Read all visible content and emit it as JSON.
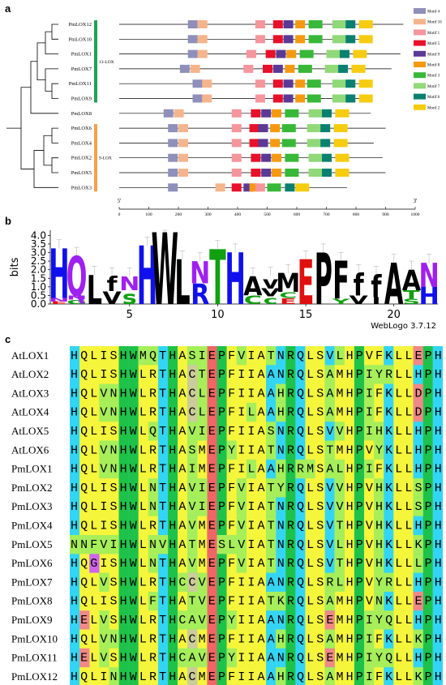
{
  "panels": {
    "a": {
      "label": "a"
    },
    "b": {
      "label": "b"
    },
    "c": {
      "label": "c"
    }
  },
  "chart_data": [
    {
      "type": "motif_structure",
      "genes": [
        "PmLOX12",
        "PmLOX10",
        "PmLOX1",
        "PmLOX7",
        "PmLOX11",
        "PmLOX9",
        "PmLOX8",
        "PmLOX6",
        "PmLOX4",
        "PmLOX2",
        "PmLOX5",
        "PmLOX3"
      ],
      "groups": [
        {
          "name": "13-LOX",
          "color": "#22a05a",
          "members": [
            "PmLOX12",
            "PmLOX10",
            "PmLOX1",
            "PmLOX7",
            "PmLOX11",
            "PmLOX9"
          ]
        },
        {
          "name": "9-LOX",
          "color": "#f5a04a",
          "members": [
            "PmLOX6",
            "PmLOX4",
            "PmLOX2",
            "PmLOX5",
            "PmLOX3"
          ]
        }
      ],
      "motif_legend": [
        {
          "name": "Motif 4",
          "color": "#8f8fbc"
        },
        {
          "name": "Motif 10",
          "color": "#f5b58c"
        },
        {
          "name": "Motif 1",
          "color": "#f5959c"
        },
        {
          "name": "Motif 5",
          "color": "#e8102a"
        },
        {
          "name": "Motif 9",
          "color": "#5a3a96"
        },
        {
          "name": "Motif 8",
          "color": "#f59a10"
        },
        {
          "name": "Motif 3",
          "color": "#38b838"
        },
        {
          "name": "Motif 7",
          "color": "#90d878"
        },
        {
          "name": "Motif 6",
          "color": "#0a8070"
        },
        {
          "name": "Motif 2",
          "color": "#f5cc10"
        }
      ],
      "lengths": [
        960,
        830,
        950,
        920,
        830,
        840,
        850,
        900,
        860,
        890,
        900,
        770
      ],
      "motif_positions": [
        [
          [
            232,
            4
          ],
          [
            265,
            10
          ],
          [
            460,
            1
          ],
          [
            520,
            5
          ],
          [
            555,
            9
          ],
          [
            595,
            8
          ],
          [
            640,
            3
          ],
          [
            720,
            7
          ],
          [
            765,
            6
          ],
          [
            810,
            2
          ]
        ],
        [
          [
            232,
            4
          ],
          [
            265,
            10
          ],
          [
            460,
            1
          ],
          [
            520,
            5
          ],
          [
            555,
            9
          ],
          [
            595,
            8
          ],
          [
            640,
            3
          ],
          [
            720,
            7
          ],
          [
            765,
            6
          ],
          [
            810,
            2
          ]
        ],
        [
          [
            232,
            4
          ],
          [
            265,
            10
          ],
          [
            430,
            1
          ],
          [
            495,
            5
          ],
          [
            530,
            9
          ],
          [
            565,
            8
          ],
          [
            610,
            3
          ],
          [
            700,
            7
          ],
          [
            745,
            6
          ],
          [
            790,
            2
          ]
        ],
        [
          [
            205,
            4
          ],
          [
            240,
            10
          ],
          [
            420,
            1
          ],
          [
            485,
            5
          ],
          [
            520,
            9
          ],
          [
            560,
            8
          ],
          [
            605,
            3
          ],
          [
            695,
            7
          ],
          [
            740,
            6
          ],
          [
            785,
            2
          ]
        ],
        [
          [
            248,
            4
          ],
          [
            280,
            10
          ],
          [
            460,
            1
          ],
          [
            520,
            5
          ],
          [
            555,
            9
          ],
          [
            595,
            8
          ],
          [
            635,
            3
          ],
          [
            720,
            7
          ],
          [
            765,
            6
          ],
          [
            810,
            2
          ]
        ],
        [
          [
            248,
            4
          ],
          [
            280,
            10
          ],
          [
            460,
            1
          ],
          [
            520,
            5
          ],
          [
            555,
            9
          ],
          [
            595,
            8
          ],
          [
            635,
            3
          ],
          [
            720,
            7
          ],
          [
            765,
            6
          ],
          [
            810,
            2
          ]
        ],
        [
          [
            150,
            4
          ],
          [
            185,
            10
          ],
          [
            380,
            1
          ],
          [
            445,
            5
          ],
          [
            480,
            9
          ],
          [
            515,
            8
          ],
          [
            560,
            3
          ],
          [
            640,
            7
          ],
          [
            685,
            6
          ],
          [
            730,
            2
          ]
        ],
        [
          [
            165,
            4
          ],
          [
            200,
            10
          ],
          [
            380,
            1
          ],
          [
            440,
            5
          ],
          [
            470,
            9
          ],
          [
            510,
            8
          ],
          [
            550,
            3
          ],
          [
            635,
            7
          ],
          [
            680,
            6
          ],
          [
            725,
            2
          ]
        ],
        [
          [
            165,
            4
          ],
          [
            200,
            10
          ],
          [
            380,
            1
          ],
          [
            440,
            5
          ],
          [
            470,
            9
          ],
          [
            510,
            8
          ],
          [
            550,
            3
          ],
          [
            635,
            7
          ],
          [
            680,
            6
          ],
          [
            725,
            2
          ]
        ],
        [
          [
            165,
            4
          ],
          [
            200,
            10
          ],
          [
            380,
            1
          ],
          [
            445,
            5
          ],
          [
            480,
            9
          ],
          [
            515,
            8
          ],
          [
            560,
            3
          ],
          [
            640,
            7
          ],
          [
            685,
            6
          ],
          [
            730,
            2
          ]
        ],
        [
          [
            165,
            4
          ],
          [
            200,
            10
          ],
          [
            380,
            1
          ],
          [
            445,
            5
          ],
          [
            480,
            9
          ],
          [
            515,
            8
          ],
          [
            560,
            3
          ],
          [
            640,
            7
          ],
          [
            685,
            6
          ],
          [
            730,
            2
          ]
        ],
        [
          [
            165,
            4
          ],
          [
            325,
            10
          ],
          [
            380,
            5
          ],
          [
            420,
            9
          ],
          [
            440,
            8
          ],
          [
            460,
            1
          ],
          [
            500,
            3
          ],
          [
            560,
            6
          ],
          [
            595,
            2
          ]
        ]
      ],
      "x_axis": {
        "ticks": [
          0,
          100,
          200,
          300,
          400,
          500,
          600,
          700,
          800,
          900,
          1000
        ],
        "min": 0,
        "max": 1000
      },
      "end_labels": [
        "5'",
        "3'"
      ]
    },
    {
      "type": "sequence_logo",
      "ylabel": "bits",
      "y_ticks": [
        "0.0",
        "0.5",
        "1.0",
        "1.5",
        "2.0",
        "2.5",
        "3.0",
        "3.5",
        "4.0"
      ],
      "ylim": [
        0,
        4.3
      ],
      "x_ticks": [
        5,
        10,
        15,
        20
      ],
      "watermark": "WebLogo 3.7.12",
      "positions": [
        [
          {
            "l": "H",
            "h": 2.9
          },
          {
            "l": "N",
            "h": 0.2
          },
          {
            "l": "E",
            "h": 0.15
          }
        ],
        [
          {
            "l": "Q",
            "h": 2.3
          },
          {
            "l": "G",
            "h": 0.25
          },
          {
            "l": "N",
            "h": 0.25
          }
        ],
        [
          {
            "l": "L",
            "h": 1.7
          }
        ],
        [
          {
            "l": "f",
            "h": 0.85
          },
          {
            "l": "V",
            "h": 0.75
          }
        ],
        [
          {
            "l": "s",
            "h": 0.8
          },
          {
            "l": "N",
            "h": 0.8
          }
        ],
        [
          {
            "l": "H",
            "h": 3.4
          }
        ],
        [
          {
            "l": "W",
            "h": 4.2
          }
        ],
        [
          {
            "l": "L",
            "h": 2.6
          }
        ],
        [
          {
            "l": "R",
            "h": 1.2
          },
          {
            "l": "N",
            "h": 1.3
          }
        ],
        [
          {
            "l": "T",
            "h": 3.2
          }
        ],
        [
          {
            "l": "H",
            "h": 3.0
          }
        ],
        [
          {
            "l": "A",
            "h": 1.1
          },
          {
            "l": "C",
            "h": 0.5
          }
        ],
        [
          {
            "l": "v",
            "h": 0.75
          },
          {
            "l": "c",
            "h": 0.45
          },
          {
            "l": "V",
            "h": 0.45
          }
        ],
        [
          {
            "l": "M",
            "h": 1.1
          },
          {
            "l": "E",
            "h": 0.35
          },
          {
            "l": "C",
            "h": 0.35
          }
        ],
        [
          {
            "l": "E",
            "h": 2.6
          }
        ],
        [
          {
            "l": "P",
            "h": 3.0
          }
        ],
        [
          {
            "l": "F",
            "h": 2.2
          },
          {
            "l": "Y",
            "h": 0.3
          }
        ],
        [
          {
            "l": "f",
            "h": 1.3
          },
          {
            "l": "V",
            "h": 0.5
          }
        ],
        [
          {
            "l": "f",
            "h": 1.3
          },
          {
            "l": "I",
            "h": 0.4
          }
        ],
        [
          {
            "l": "A",
            "h": 2.4
          }
        ],
        [
          {
            "l": "A",
            "h": 1.2
          },
          {
            "l": "T",
            "h": 0.5
          },
          {
            "l": "S",
            "h": 0.3
          }
        ],
        [
          {
            "l": "N",
            "h": 1.4
          },
          {
            "l": "H",
            "h": 1.0
          }
        ]
      ]
    },
    {
      "type": "table",
      "rows": [
        {
          "name": "AtLOX1",
          "seq": "HQLISHWMQTHASIEPFVIATNRQLSVLHPVFKLLEPH"
        },
        {
          "name": "AtLOX2",
          "seq": "HQLISHWLRTHACTEPFIIAANRQLSAMHPIYRLLHPH"
        },
        {
          "name": "AtLOX3",
          "seq": "HQLVNHWLRTHACLEPFIIAAHRQLSAMHPIFKLLDPH"
        },
        {
          "name": "AtLOX4",
          "seq": "HQLVNHWLRTHACLEPFILAAHRQLSAMHPIFKLLDPH"
        },
        {
          "name": "AtLOX5",
          "seq": "HQLISHWLQTHAVIEPFIIASNRQLSVVHPIHKLLHPH"
        },
        {
          "name": "AtLOX6",
          "seq": "HQLVNHWLRTHASMEPYIIATNRQLSTMHPVYKLLHPH"
        },
        {
          "name": "PmLOX1",
          "seq": "HQLVNHWLRTHAIMEPFILAAHRRMSALHPIFKLLHPH"
        },
        {
          "name": "PmLOX2",
          "seq": "HQLISHWLNTHAVIEPFVIATYRQLSVVHPVHKLLSPH"
        },
        {
          "name": "PmLOX3",
          "seq": "HQLISHWLNTHAVIEPFVIATNRQLSVVHPVHKLLSPH"
        },
        {
          "name": "PmLOX4",
          "seq": "HQLISHWLRTHAVMEPFVIATNRQLSVTHPVHKLLHPH"
        },
        {
          "name": "PmLOX5",
          "seq": "NNFVIHWLNVHATMESLVIATNRQLSVLHPVHKLLKPH"
        },
        {
          "name": "PmLOX6",
          "seq": "HQGISHWLNTHAVMEPFVIATNRQLSVTHPVHKLLLPH"
        },
        {
          "name": "PmLOX7",
          "seq": "HQLVSHWLRTHCCVEPFIIAANRQLSRLHPVYRLLHPH"
        },
        {
          "name": "PmLOX8",
          "seq": "HQLISHWLFTHATVEPFIIATKRQLSAMHPVNKLLEPH"
        },
        {
          "name": "PmLOX9",
          "seq": "HELVSHWLRTHCAVEPYIIAANRQLSEMHPIYQLLHPH"
        },
        {
          "name": "PmLOX10",
          "seq": "HQLVNHWLRTHACMEPFIIAAHRQLSAMHPIFKLLKPH"
        },
        {
          "name": "PmLOX11",
          "seq": "HELVSHWLRTHCAVEPYIIAANRQLSEMHPIYQLLHPH"
        },
        {
          "name": "PmLOX12",
          "seq": "HQLINHWLRTHACMEPFIIAAHRQLSAMHPIFKLLKPH"
        }
      ]
    }
  ]
}
